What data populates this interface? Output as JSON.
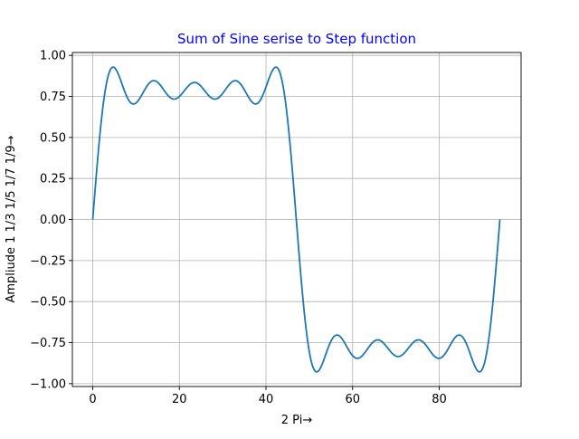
{
  "chart_data": {
    "type": "line",
    "title": "Sum of Sine serise to Step function",
    "xlabel": "2 Pi→",
    "ylabel": "Ampliude 1 1/3 1/5 1/7 1/9→",
    "xlim": [
      -4.7,
      98.9
    ],
    "ylim": [
      -1.0174,
      1.0175
    ],
    "xticks": [
      0,
      20,
      40,
      60,
      80
    ],
    "xtick_labels": [
      "0",
      "20",
      "40",
      "60",
      "80"
    ],
    "yticks": [
      -1.0,
      -0.75,
      -0.5,
      -0.25,
      0.0,
      0.25,
      0.5,
      0.75,
      1.0
    ],
    "ytick_labels": [
      "−1.00",
      "−0.75",
      "−0.50",
      "−0.25",
      "0.00",
      "0.25",
      "0.50",
      "0.75",
      "1.00"
    ],
    "grid": true,
    "series": [
      {
        "function": "sum over odd harmonics n = 1, 3, 5, 7, 9 of sin(n*x)/n, with x running over one full period 0..2*pi",
        "harmonics": [
          1,
          3,
          5,
          7,
          9
        ],
        "x_start": 0,
        "x_end": 94,
        "color": "#1f77b4"
      }
    ]
  },
  "colors": {
    "title": "#0000ff",
    "line": "#1f77b4",
    "grid": "#b0b0b0",
    "axes": "#000000"
  }
}
